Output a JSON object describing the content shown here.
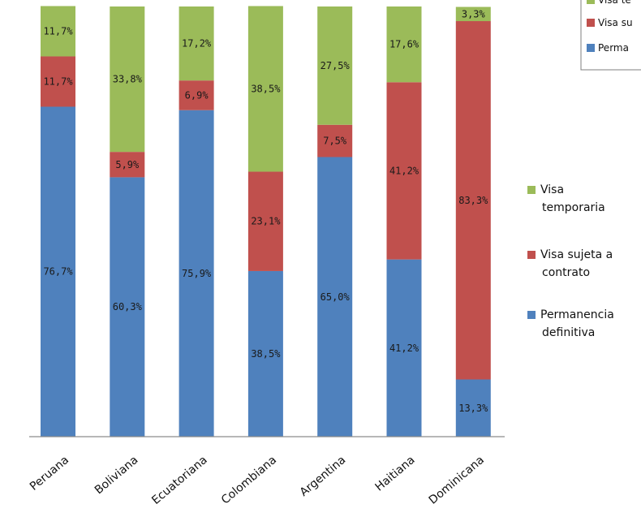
{
  "chart_data": {
    "type": "bar",
    "stacked": true,
    "categories": [
      "Peruana",
      "Boliviana",
      "Ecuatoriana",
      "Colombiana",
      "Argentina",
      "Haitiana",
      "Dominicana"
    ],
    "series": [
      {
        "name": "Permanencia definitiva",
        "color": "#4f81bd",
        "values": [
          76.7,
          60.3,
          75.9,
          38.5,
          65.0,
          41.2,
          13.3
        ],
        "labels": [
          "76,7%",
          "60,3%",
          "75,9%",
          "38,5%",
          "65,0%",
          "41,2%",
          "13,3%"
        ]
      },
      {
        "name": "Visa sujeta a contrato",
        "color": "#c0504d",
        "values": [
          11.7,
          5.9,
          6.9,
          23.1,
          7.5,
          41.2,
          83.3
        ],
        "labels": [
          "11,7%",
          "5,9%",
          "6,9%",
          "23,1%",
          "7,5%",
          "41,2%",
          "83,3%"
        ]
      },
      {
        "name": "Visa temporaria",
        "color": "#9bbb59",
        "values": [
          11.7,
          33.8,
          17.2,
          38.5,
          27.5,
          17.6,
          3.3
        ],
        "labels": [
          "11,7%",
          "33,8%",
          "17,2%",
          "38,5%",
          "27,5%",
          "17,6%",
          "3,3%"
        ]
      }
    ],
    "ylim": [
      0,
      100
    ],
    "grid": false,
    "legend_main": [
      {
        "series": 2,
        "lines": [
          "Visa",
          "temporaria"
        ]
      },
      {
        "series": 1,
        "lines": [
          "Visa sujeta a",
          "contrato"
        ]
      },
      {
        "series": 0,
        "lines": [
          "Permanencia",
          "definitiva"
        ]
      }
    ],
    "legend_corner": [
      "Visa te",
      "Visa su",
      "Perma"
    ]
  }
}
